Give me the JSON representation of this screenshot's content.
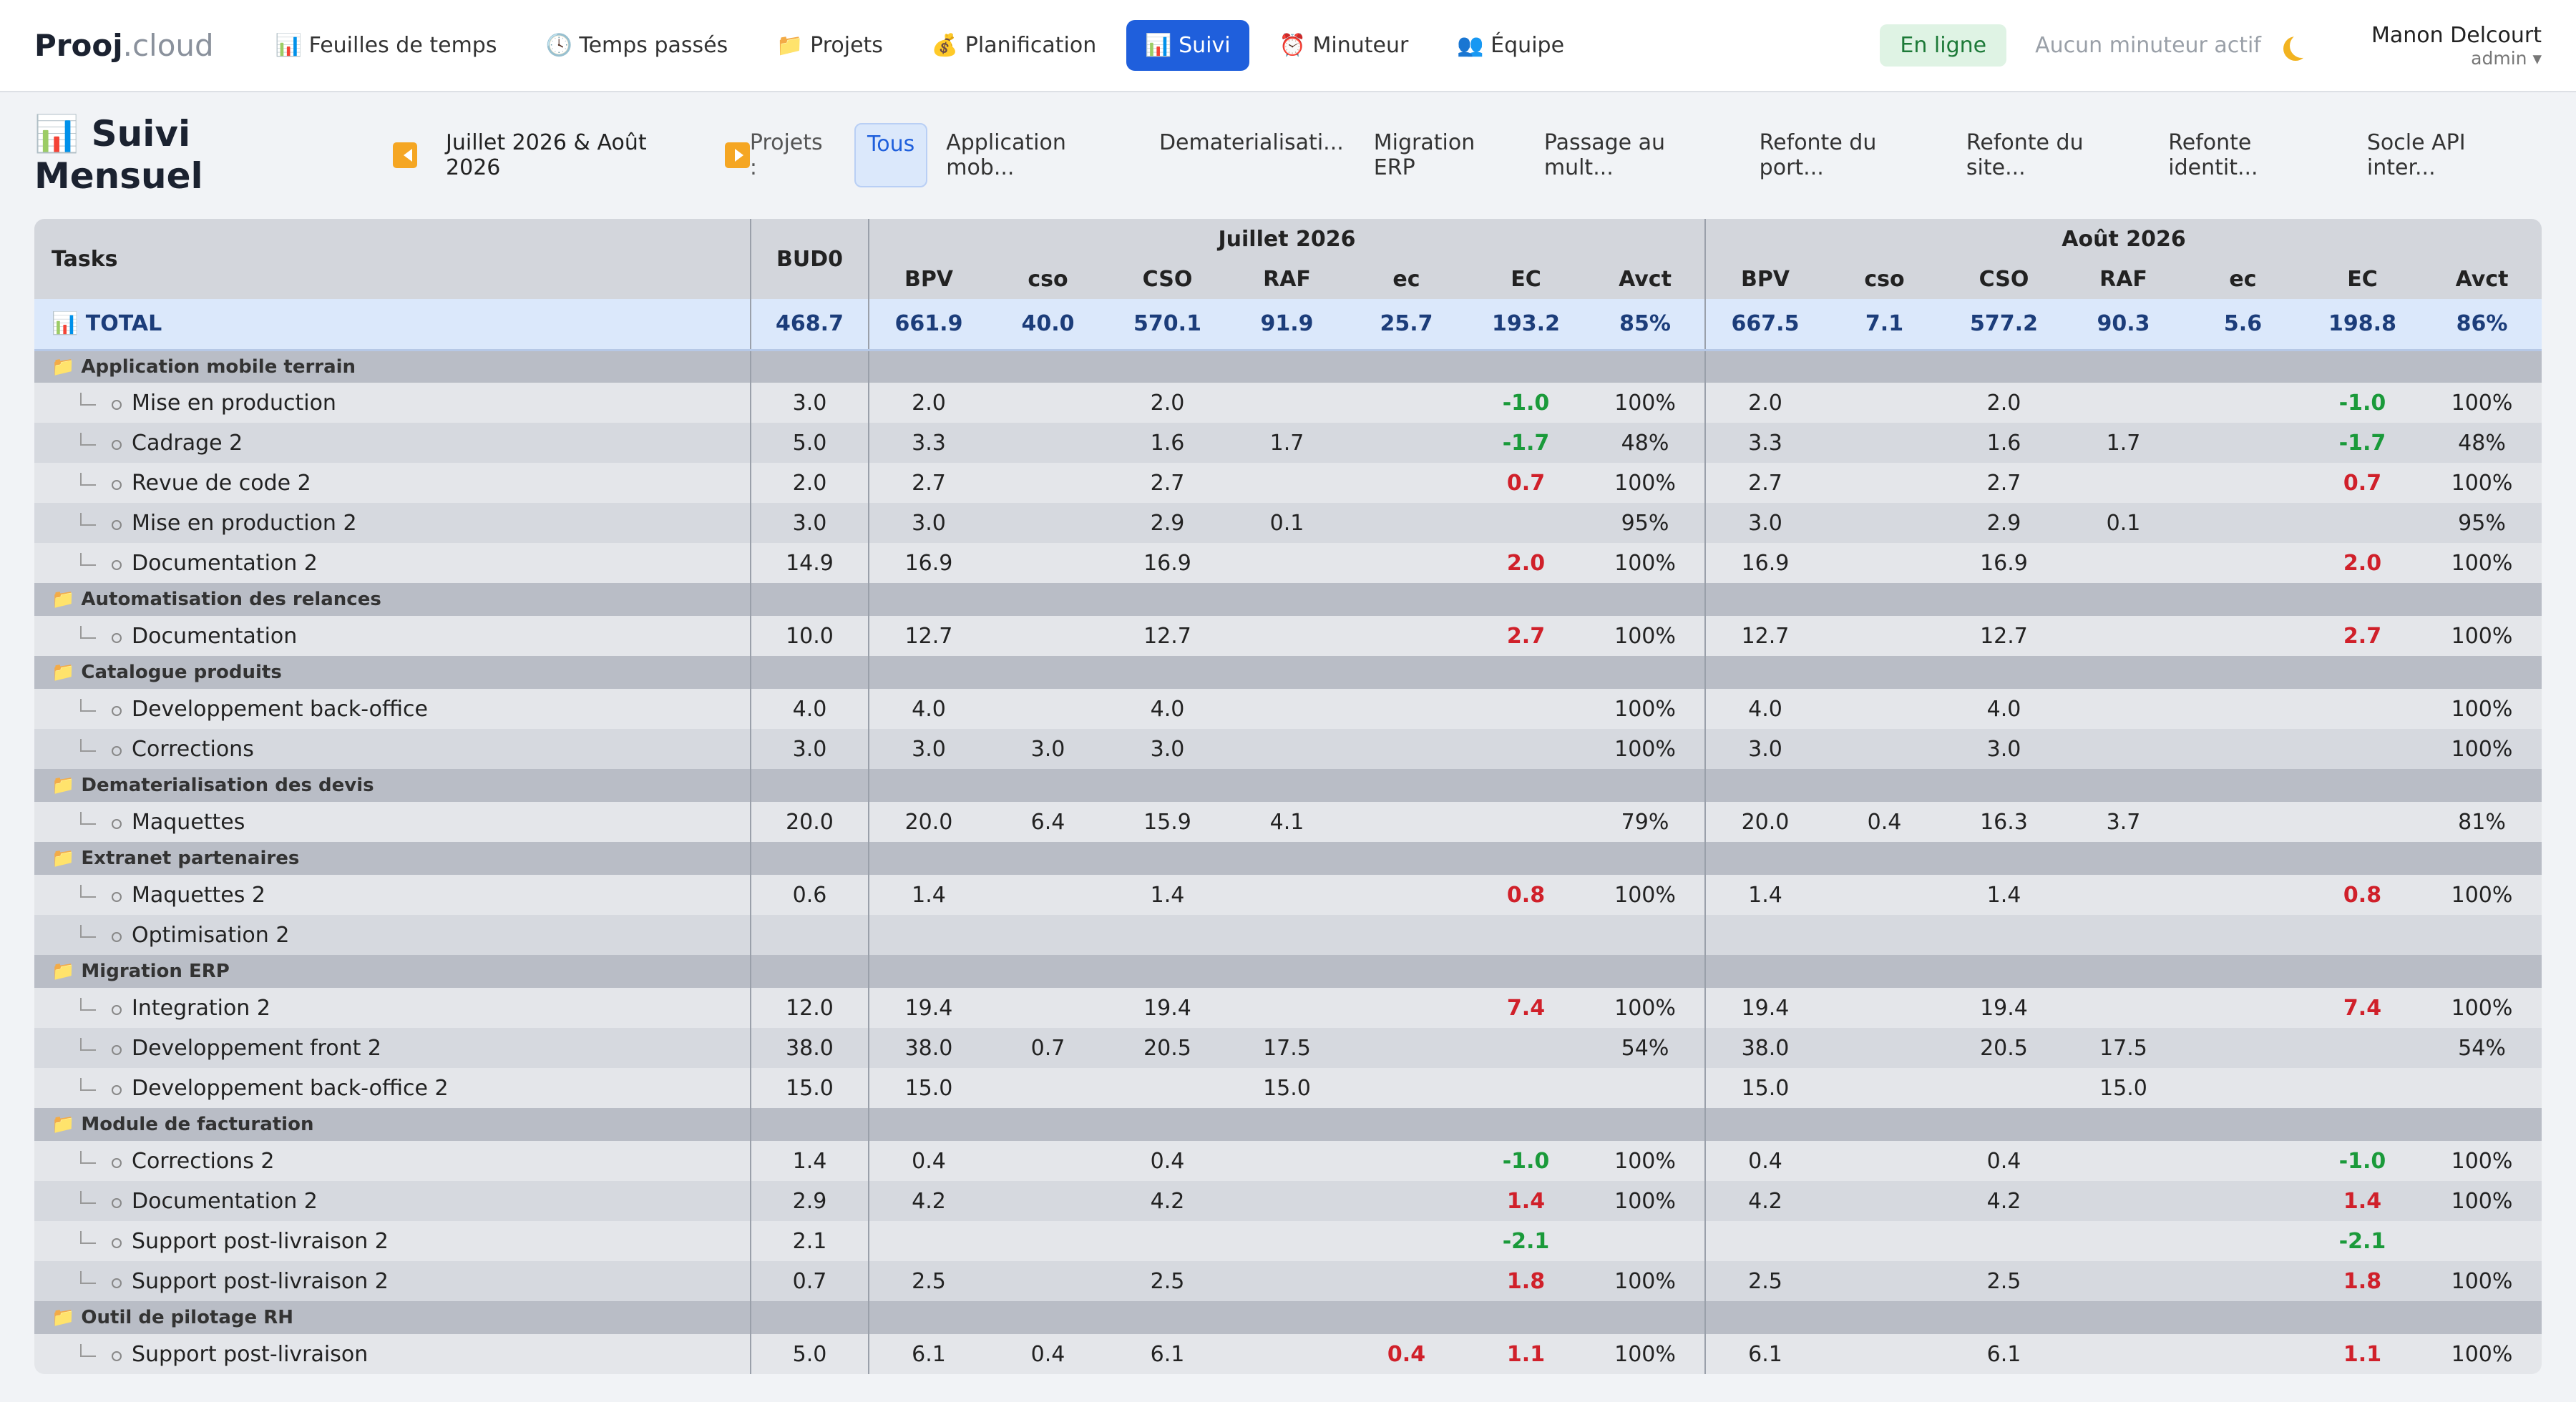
{
  "nav": {
    "brand": "Prooj",
    "brand_suffix": ".cloud",
    "items": [
      "📊 Feuilles de temps",
      "🕓 Temps passés",
      "📁 Projets",
      "💰 Planification",
      "📊 Suivi",
      "⏰ Minuteur",
      "👥 Équipe"
    ],
    "active": 4,
    "status": "En ligne",
    "timer": "Aucun minuteur actif",
    "user": "Manon Delcourt",
    "role": "admin ▾"
  },
  "header": {
    "title": "📊 Suivi Mensuel",
    "period": "Juillet 2026 & Août 2026",
    "filter_label": "Projets :",
    "filters": [
      "Tous",
      "Application mob...",
      "Dematerialisati...",
      "Migration ERP",
      "Passage au mult...",
      "Refonte du port...",
      "Refonte du site...",
      "Refonte identit...",
      "Socle API inter..."
    ],
    "active_filter": 0
  },
  "table": {
    "header": {
      "tasks": "Tasks",
      "bud0": "BUD0"
    },
    "months": [
      {
        "name": "Juillet 2026",
        "columns": [
          "BPV",
          "cso",
          "CSO",
          "RAF",
          "ec",
          "EC",
          "Avct"
        ]
      },
      {
        "name": "Août 2026",
        "columns": [
          "BPV",
          "cso",
          "CSO",
          "RAF",
          "ec",
          "EC",
          "Avct"
        ]
      }
    ],
    "total": {
      "label": "📊 TOTAL",
      "cells": [
        "468.7",
        "661.9",
        "40.0",
        "570.1",
        "91.9",
        "25.7",
        "193.2",
        "85%",
        "667.5",
        "7.1",
        "577.2",
        "90.3",
        "5.6",
        "198.8",
        "86%"
      ]
    },
    "groups": [
      {
        "name": "📁 Application mobile terrain",
        "tasks": [
          {
            "name": "Mise en production",
            "cells": [
              "3.0",
              "2.0",
              null,
              "2.0",
              null,
              null,
              "-1.0",
              "100%",
              "2.0",
              null,
              "2.0",
              null,
              null,
              "-1.0",
              "100%"
            ]
          },
          {
            "name": "Cadrage 2",
            "cells": [
              "5.0",
              "3.3",
              null,
              "1.6",
              "1.7",
              null,
              "-1.7",
              "48%",
              "3.3",
              null,
              "1.6",
              "1.7",
              null,
              "-1.7",
              "48%"
            ]
          },
          {
            "name": "Revue de code 2",
            "cells": [
              "2.0",
              "2.7",
              null,
              "2.7",
              null,
              null,
              "0.7",
              "100%",
              "2.7",
              null,
              "2.7",
              null,
              null,
              "0.7",
              "100%"
            ]
          },
          {
            "name": "Mise en production 2",
            "cells": [
              "3.0",
              "3.0",
              null,
              "2.9",
              "0.1",
              null,
              null,
              "95%",
              "3.0",
              null,
              "2.9",
              "0.1",
              null,
              null,
              "95%"
            ]
          },
          {
            "name": "Documentation 2",
            "cells": [
              "14.9",
              "16.9",
              null,
              "16.9",
              null,
              null,
              "2.0",
              "100%",
              "16.9",
              null,
              "16.9",
              null,
              null,
              "2.0",
              "100%"
            ]
          }
        ]
      },
      {
        "name": "📁 Automatisation des relances",
        "tasks": [
          {
            "name": "Documentation",
            "cells": [
              "10.0",
              "12.7",
              null,
              "12.7",
              null,
              null,
              "2.7",
              "100%",
              "12.7",
              null,
              "12.7",
              null,
              null,
              "2.7",
              "100%"
            ]
          }
        ]
      },
      {
        "name": "📁 Catalogue produits",
        "tasks": [
          {
            "name": "Developpement back-office",
            "cells": [
              "4.0",
              "4.0",
              null,
              "4.0",
              null,
              null,
              null,
              "100%",
              "4.0",
              null,
              "4.0",
              null,
              null,
              null,
              "100%"
            ]
          },
          {
            "name": "Corrections",
            "cells": [
              "3.0",
              "3.0",
              "3.0",
              "3.0",
              null,
              null,
              null,
              "100%",
              "3.0",
              null,
              "3.0",
              null,
              null,
              null,
              "100%"
            ]
          }
        ]
      },
      {
        "name": "📁 Dematerialisation des devis",
        "tasks": [
          {
            "name": "Maquettes",
            "cells": [
              "20.0",
              "20.0",
              "6.4",
              "15.9",
              "4.1",
              null,
              null,
              "79%",
              "20.0",
              "0.4",
              "16.3",
              "3.7",
              null,
              null,
              "81%"
            ]
          }
        ]
      },
      {
        "name": "📁 Extranet partenaires",
        "tasks": [
          {
            "name": "Maquettes 2",
            "cells": [
              "0.6",
              "1.4",
              null,
              "1.4",
              null,
              null,
              "0.8",
              "100%",
              "1.4",
              null,
              "1.4",
              null,
              null,
              "0.8",
              "100%"
            ]
          },
          {
            "name": "Optimisation 2",
            "cells": [
              null,
              null,
              null,
              null,
              null,
              null,
              null,
              null,
              null,
              null,
              null,
              null,
              null,
              null,
              null
            ]
          }
        ]
      },
      {
        "name": "📁 Migration ERP",
        "tasks": [
          {
            "name": "Integration 2",
            "cells": [
              "12.0",
              "19.4",
              null,
              "19.4",
              null,
              null,
              "7.4",
              "100%",
              "19.4",
              null,
              "19.4",
              null,
              null,
              "7.4",
              "100%"
            ]
          },
          {
            "name": "Developpement front 2",
            "cells": [
              "38.0",
              "38.0",
              "0.7",
              "20.5",
              "17.5",
              null,
              null,
              "54%",
              "38.0",
              null,
              "20.5",
              "17.5",
              null,
              null,
              "54%"
            ]
          },
          {
            "name": "Developpement back-office 2",
            "cells": [
              "15.0",
              "15.0",
              null,
              null,
              "15.0",
              null,
              null,
              null,
              "15.0",
              null,
              null,
              "15.0",
              null,
              null,
              null
            ]
          }
        ]
      },
      {
        "name": "📁 Module de facturation",
        "tasks": [
          {
            "name": "Corrections 2",
            "cells": [
              "1.4",
              "0.4",
              null,
              "0.4",
              null,
              null,
              "-1.0",
              "100%",
              "0.4",
              null,
              "0.4",
              null,
              null,
              "-1.0",
              "100%"
            ]
          },
          {
            "name": "Documentation 2",
            "cells": [
              "2.9",
              "4.2",
              null,
              "4.2",
              null,
              null,
              "1.4",
              "100%",
              "4.2",
              null,
              "4.2",
              null,
              null,
              "1.4",
              "100%"
            ]
          },
          {
            "name": "Support post-livraison 2",
            "cells": [
              "2.1",
              null,
              null,
              null,
              null,
              null,
              "-2.1",
              null,
              null,
              null,
              null,
              null,
              null,
              "-2.1",
              null
            ]
          },
          {
            "name": "Support post-livraison 2",
            "cells": [
              "0.7",
              "2.5",
              null,
              "2.5",
              null,
              null,
              "1.8",
              "100%",
              "2.5",
              null,
              "2.5",
              null,
              null,
              "1.8",
              "100%"
            ]
          }
        ]
      },
      {
        "name": "📁 Outil de pilotage RH",
        "tasks": [
          {
            "name": "Support post-livraison",
            "cells": [
              "5.0",
              "6.1",
              "0.4",
              "6.1",
              null,
              "0.4",
              "1.1",
              "100%",
              "6.1",
              null,
              "6.1",
              null,
              null,
              "1.1",
              "100%"
            ]
          }
        ]
      }
    ]
  }
}
